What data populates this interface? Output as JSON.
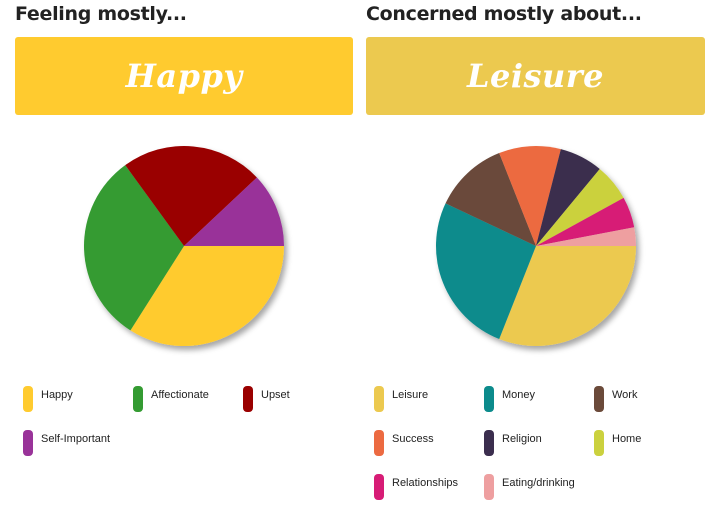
{
  "chart_data": [
    {
      "type": "pie",
      "title": "Feeling mostly...",
      "highlight": "Happy",
      "banner_color": "#FFCB2F",
      "slices": [
        {
          "label": "Happy",
          "value": 34,
          "color": "#FFCB2F"
        },
        {
          "label": "Affectionate",
          "value": 31,
          "color": "#349B32"
        },
        {
          "label": "Upset",
          "value": 23,
          "color": "#9A0000"
        },
        {
          "label": "Self-Important",
          "value": 12,
          "color": "#993399"
        }
      ]
    },
    {
      "type": "pie",
      "title": "Concerned mostly about...",
      "highlight": "Leisure",
      "banner_color": "#ECC94F",
      "slices": [
        {
          "label": "Leisure",
          "value": 31,
          "color": "#ECC94F"
        },
        {
          "label": "Money",
          "value": 26,
          "color": "#0C8B8C"
        },
        {
          "label": "Work",
          "value": 12,
          "color": "#6B4A3A"
        },
        {
          "label": "Success",
          "value": 10,
          "color": "#EC6A41"
        },
        {
          "label": "Religion",
          "value": 7,
          "color": "#3B2E4E"
        },
        {
          "label": "Home",
          "value": 6,
          "color": "#CBD13E"
        },
        {
          "label": "Relationships",
          "value": 5,
          "color": "#D71C76"
        },
        {
          "label": "Eating/drinking",
          "value": 3,
          "color": "#EE9FA0"
        }
      ]
    }
  ]
}
